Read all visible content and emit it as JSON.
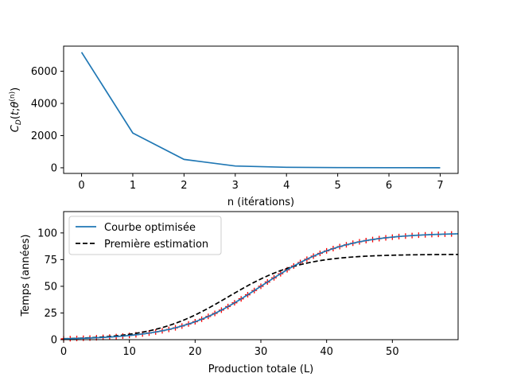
{
  "chart_data": [
    {
      "type": "line",
      "xlabel": "n (itérations)",
      "ylabel": "C_D(t; θ^(n))",
      "xlim": [
        -0.35,
        7.35
      ],
      "ylim": [
        -350,
        7560
      ],
      "xticks": [
        "0",
        "1",
        "2",
        "3",
        "4",
        "5",
        "6",
        "7"
      ],
      "yticks": [
        "0",
        "2000",
        "4000",
        "6000"
      ],
      "grid": false,
      "series": [
        {
          "color": "#1f77b4",
          "x": [
            0,
            1,
            2,
            3,
            4,
            5,
            6,
            7
          ],
          "y": [
            7180,
            2160,
            520,
            110,
            30,
            12,
            6,
            4
          ]
        }
      ]
    },
    {
      "type": "line",
      "xlabel": "Production totale (L)",
      "ylabel": "Temps (années)",
      "xlim": [
        0,
        60
      ],
      "ylim": [
        0,
        120
      ],
      "xticks": [
        "0",
        "10",
        "20",
        "30",
        "40",
        "50"
      ],
      "yticks": [
        "0",
        "25",
        "50",
        "75",
        "100"
      ],
      "grid": false,
      "legend": {
        "position": "upper-left"
      },
      "series": [
        {
          "name": "Courbe optimisée",
          "color": "#1f77b4",
          "style": "solid",
          "model": "logistic",
          "A": 100,
          "k": 0.16,
          "x0": 30
        },
        {
          "name": "Première estimation",
          "color": "#000000",
          "style": "dashed",
          "model": "logistic",
          "A": 80,
          "k": 0.18,
          "x0": 25
        },
        {
          "color": "#ff0000",
          "style": "plus-markers",
          "model": "logistic",
          "A": 100,
          "k": 0.16,
          "x0": 30,
          "x_start": 0,
          "x_end": 59,
          "x_step": 1
        }
      ]
    }
  ]
}
